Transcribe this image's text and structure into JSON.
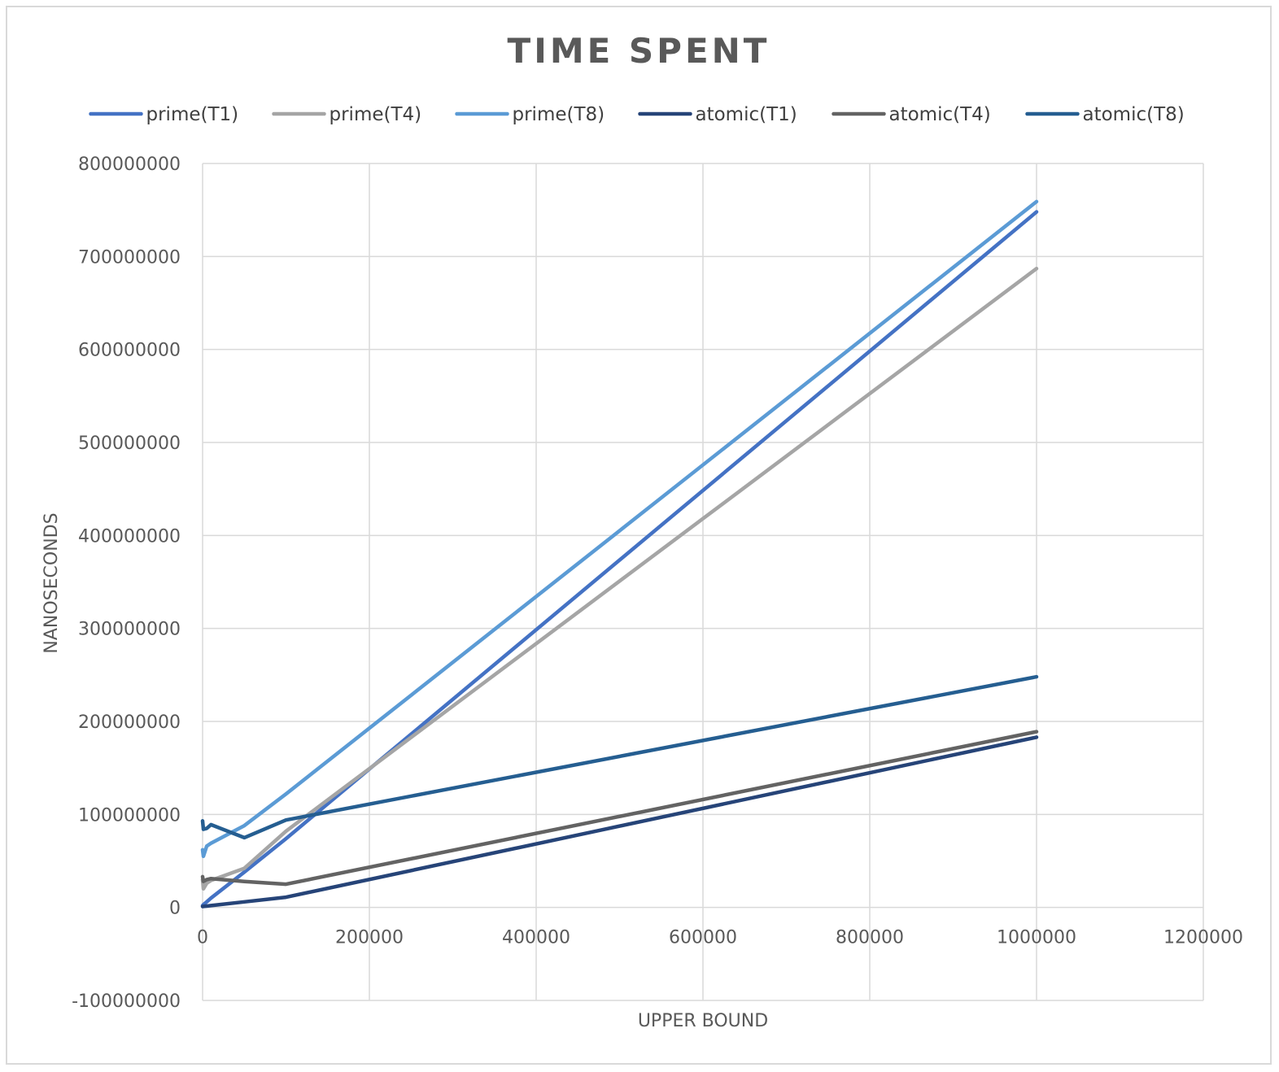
{
  "chart_data": {
    "type": "line",
    "title": "TIME SPENT",
    "xlabel": "UPPER BOUND",
    "ylabel": "NANOSECONDS",
    "xlim": [
      0,
      1200000
    ],
    "ylim": [
      -100000000,
      800000000
    ],
    "x_ticks": [
      0,
      200000,
      400000,
      600000,
      800000,
      1000000,
      1200000
    ],
    "x_tick_labels": [
      "0",
      "200000",
      "400000",
      "600000",
      "800000",
      "1000000",
      "1200000"
    ],
    "y_ticks": [
      -100000000,
      0,
      100000000,
      200000000,
      300000000,
      400000000,
      500000000,
      600000000,
      700000000,
      800000000
    ],
    "y_tick_labels": [
      "-100000000",
      "0",
      "100000000",
      "200000000",
      "300000000",
      "400000000",
      "500000000",
      "600000000",
      "700000000",
      "800000000"
    ],
    "grid": true,
    "legend_position": "top",
    "series": [
      {
        "name": "prime(T1)",
        "color": "#4472C4",
        "points": [
          [
            0,
            2000000
          ],
          [
            1000,
            3000000
          ],
          [
            5000,
            6000000
          ],
          [
            10000,
            10000000
          ],
          [
            50000,
            38000000
          ],
          [
            100000,
            74000000
          ],
          [
            1000000,
            748000000
          ]
        ]
      },
      {
        "name": "prime(T4)",
        "color": "#A5A5A5",
        "points": [
          [
            0,
            30000000
          ],
          [
            1000,
            20000000
          ],
          [
            5000,
            26000000
          ],
          [
            10000,
            29000000
          ],
          [
            50000,
            42000000
          ],
          [
            100000,
            82000000
          ],
          [
            1000000,
            687000000
          ]
        ]
      },
      {
        "name": "prime(T8)",
        "color": "#5B9BD5",
        "points": [
          [
            0,
            62000000
          ],
          [
            1000,
            55000000
          ],
          [
            5000,
            66000000
          ],
          [
            10000,
            69000000
          ],
          [
            50000,
            88000000
          ],
          [
            100000,
            122000000
          ],
          [
            1000000,
            759000000
          ]
        ]
      },
      {
        "name": "atomic(T1)",
        "color": "#264478",
        "points": [
          [
            0,
            1000000
          ],
          [
            5000,
            1500000
          ],
          [
            10000,
            2000000
          ],
          [
            50000,
            6000000
          ],
          [
            100000,
            11000000
          ],
          [
            1000000,
            183000000
          ]
        ]
      },
      {
        "name": "atomic(T4)",
        "color": "#636363",
        "points": [
          [
            0,
            33000000
          ],
          [
            1000,
            28000000
          ],
          [
            5000,
            30000000
          ],
          [
            10000,
            31000000
          ],
          [
            50000,
            28000000
          ],
          [
            100000,
            25000000
          ],
          [
            1000000,
            189000000
          ]
        ]
      },
      {
        "name": "atomic(T8)",
        "color": "#255E91",
        "points": [
          [
            0,
            93000000
          ],
          [
            1000,
            84000000
          ],
          [
            5000,
            85000000
          ],
          [
            10000,
            89000000
          ],
          [
            50000,
            75000000
          ],
          [
            100000,
            94000000
          ],
          [
            1000000,
            248000000
          ]
        ]
      }
    ]
  }
}
